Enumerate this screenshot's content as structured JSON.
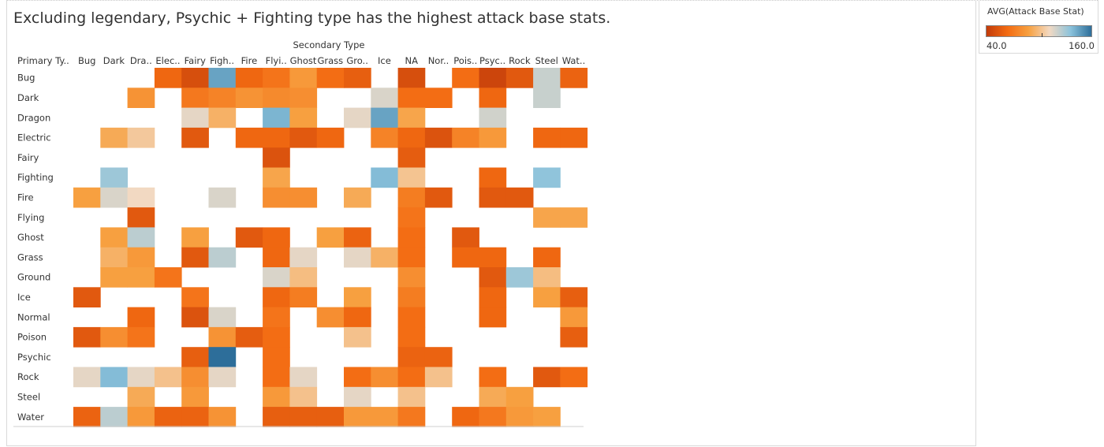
{
  "title": "Excluding legendary, Psychic + Fighting type has the highest attack base stats.",
  "legend": {
    "title": "AVG(Attack Base Stat)",
    "min_label": "40.0",
    "max_label": "160.0",
    "colors": [
      "#c23b0a",
      "#f36b12",
      "#f7a040",
      "#f2d9c2",
      "#8cc3dc",
      "#2d6e9a"
    ]
  },
  "chart_data": {
    "type": "heatmap",
    "title": "Excluding legendary, Psychic + Fighting type has the highest attack base stats.",
    "x_title": "Secondary Type",
    "y_title": "Primary Ty..",
    "x_labels": [
      "Bug",
      "Dark",
      "Dra..",
      "Elec..",
      "Fairy",
      "Figh..",
      "Fire",
      "Flyi..",
      "Ghost",
      "Grass",
      "Gro..",
      "Ice",
      "NA",
      "Nor..",
      "Pois..",
      "Psyc..",
      "Rock",
      "Steel",
      "Wat.."
    ],
    "y_labels": [
      "Bug",
      "Dark",
      "Dragon",
      "Electric",
      "Fairy",
      "Fighting",
      "Fire",
      "Flying",
      "Ghost",
      "Grass",
      "Ground",
      "Ice",
      "Normal",
      "Poison",
      "Psychic",
      "Rock",
      "Steel",
      "Water"
    ],
    "value_range": [
      40,
      160
    ],
    "values": [
      [
        null,
        null,
        null,
        62,
        50,
        145,
        62,
        68,
        85,
        65,
        58,
        null,
        50,
        null,
        65,
        45,
        55,
        122,
        60
      ],
      [
        null,
        null,
        82,
        null,
        70,
        75,
        82,
        78,
        80,
        null,
        null,
        118,
        65,
        65,
        null,
        62,
        null,
        122,
        null
      ],
      [
        null,
        null,
        null,
        null,
        115,
        95,
        null,
        140,
        88,
        null,
        115,
        145,
        90,
        null,
        null,
        120,
        null,
        null,
        null
      ],
      [
        null,
        92,
        105,
        null,
        55,
        null,
        62,
        62,
        55,
        62,
        null,
        75,
        62,
        52,
        75,
        85,
        null,
        62,
        62
      ],
      [
        null,
        null,
        null,
        null,
        null,
        null,
        null,
        52,
        null,
        null,
        null,
        null,
        57,
        null,
        null,
        null,
        null,
        null,
        null
      ],
      [
        null,
        132,
        null,
        null,
        null,
        null,
        null,
        90,
        null,
        null,
        null,
        138,
        103,
        null,
        null,
        62,
        null,
        135,
        null
      ],
      [
        88,
        118,
        112,
        null,
        null,
        118,
        null,
        80,
        80,
        null,
        92,
        null,
        72,
        55,
        null,
        55,
        55,
        null,
        null
      ],
      [
        null,
        null,
        55,
        null,
        null,
        null,
        null,
        null,
        null,
        null,
        null,
        null,
        68,
        null,
        null,
        null,
        null,
        90,
        90
      ],
      [
        null,
        88,
        125,
        null,
        88,
        null,
        55,
        62,
        null,
        88,
        60,
        null,
        65,
        null,
        55,
        null,
        null,
        null,
        null
      ],
      [
        null,
        95,
        85,
        null,
        55,
        125,
        null,
        62,
        115,
        null,
        115,
        95,
        65,
        null,
        62,
        62,
        null,
        62,
        null
      ],
      [
        null,
        88,
        88,
        68,
        null,
        null,
        null,
        118,
        100,
        null,
        null,
        null,
        80,
        null,
        null,
        55,
        132,
        100,
        null
      ],
      [
        55,
        null,
        null,
        null,
        68,
        null,
        null,
        62,
        72,
        null,
        88,
        null,
        72,
        null,
        null,
        62,
        null,
        88,
        58
      ],
      [
        null,
        null,
        62,
        null,
        52,
        118,
        null,
        68,
        null,
        80,
        62,
        null,
        65,
        null,
        null,
        62,
        null,
        null,
        85
      ],
      [
        55,
        80,
        68,
        null,
        null,
        82,
        57,
        65,
        null,
        null,
        102,
        null,
        65,
        null,
        null,
        null,
        null,
        null,
        58
      ],
      [
        null,
        null,
        null,
        null,
        58,
        160,
        null,
        65,
        null,
        null,
        null,
        null,
        60,
        60,
        null,
        null,
        null,
        null,
        null
      ],
      [
        115,
        138,
        115,
        102,
        80,
        115,
        null,
        65,
        115,
        null,
        65,
        80,
        65,
        102,
        null,
        65,
        null,
        55,
        65
      ],
      [
        null,
        null,
        92,
        null,
        85,
        null,
        null,
        85,
        102,
        null,
        115,
        null,
        102,
        null,
        null,
        92,
        88,
        null,
        null
      ],
      [
        60,
        125,
        85,
        60,
        60,
        82,
        null,
        58,
        58,
        58,
        85,
        85,
        70,
        null,
        62,
        70,
        85,
        88,
        null
      ]
    ]
  }
}
